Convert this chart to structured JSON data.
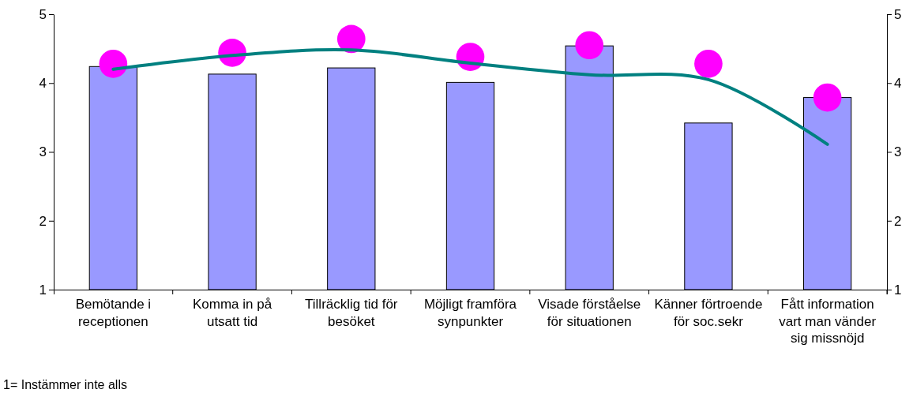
{
  "chart_data": {
    "type": "bar",
    "categories": [
      "Bemötande i receptionen",
      "Komma in på utsatt tid",
      "Tillräcklig tid för besöket",
      "Möjligt framföra synpunkter",
      "Visade förståelse för situationen",
      "Känner förtroende för soc.sekr",
      "Fått information vart man vänder sig missnöjd"
    ],
    "series": [
      {
        "color": "#9999ff",
        "values": [
          4.24,
          4.13,
          4.22,
          4.01,
          4.54,
          3.42,
          3.79
        ]
      },
      {
        "type": "line",
        "color": "#008080",
        "values": [
          4.2,
          4.4,
          4.48,
          4.29,
          4.12,
          4.05,
          3.11
        ]
      },
      {
        "type": "scatter",
        "color": "#ff00ff",
        "marker": "circle",
        "values": [
          4.28,
          4.44,
          4.64,
          4.38,
          4.55,
          4.28,
          3.79
        ]
      }
    ],
    "ylim": [
      1,
      5
    ],
    "yticks": [
      1,
      2,
      3,
      4,
      5
    ],
    "y2lim": [
      1,
      5
    ],
    "y2ticks": [
      1,
      2,
      3,
      4,
      5
    ],
    "grid": false,
    "annotations": [
      "1= Instämmer inte alls"
    ]
  }
}
